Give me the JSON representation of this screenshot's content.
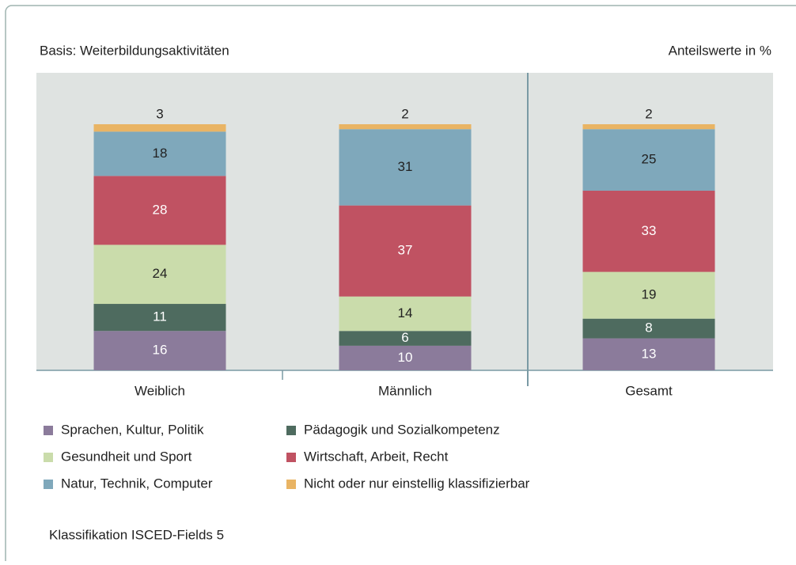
{
  "chart_data": {
    "type": "stacked_bar",
    "subtitle": "Basis: Weiterbildungsaktivitäten",
    "unit_label": "Anteilswerte in %",
    "categories": [
      "Weiblich",
      "Männlich",
      "Gesamt"
    ],
    "series": [
      {
        "name": "Sprachen, Kultur, Politik",
        "color": "#8b7b9b",
        "values": [
          16,
          10,
          13
        ]
      },
      {
        "name": "Pädagogik und Sozialkompetenz",
        "color": "#4e6b5f",
        "values": [
          11,
          6,
          8
        ]
      },
      {
        "name": "Gesundheit und Sport",
        "color": "#cadcab",
        "values": [
          24,
          14,
          19
        ]
      },
      {
        "name": "Wirtschaft, Arbeit, Recht",
        "color": "#c05262",
        "values": [
          28,
          37,
          33
        ]
      },
      {
        "name": "Natur, Technik, Computer",
        "color": "#7fa8bb",
        "values": [
          18,
          31,
          25
        ]
      },
      {
        "name": "Nicht oder nur einstellig klassifizierbar",
        "color": "#e9b464",
        "values": [
          3,
          2,
          2
        ]
      }
    ],
    "ylim": [
      0,
      100
    ],
    "note": "Klassifikation ISCED-Fields 5"
  }
}
